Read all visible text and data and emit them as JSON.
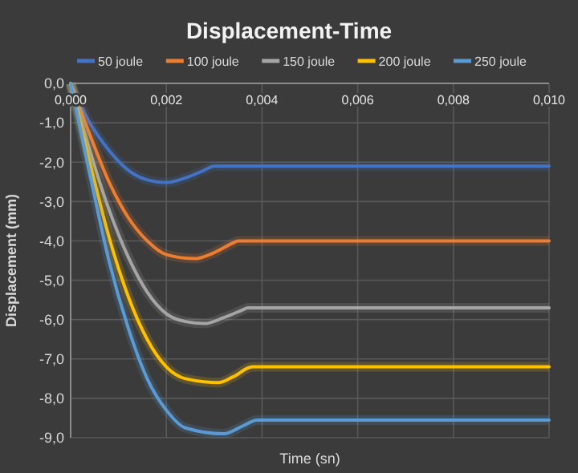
{
  "chart_data": {
    "type": "line",
    "title": "Displacement-Time",
    "xlabel": "Time (sn)",
    "ylabel": "Displacement (mm)",
    "xlim": [
      0,
      0.01
    ],
    "ylim": [
      -9,
      0
    ],
    "xticks": [
      {
        "value": 0,
        "label": "0,000"
      },
      {
        "value": 0.002,
        "label": "0,002"
      },
      {
        "value": 0.004,
        "label": "0,004"
      },
      {
        "value": 0.006,
        "label": "0,006"
      },
      {
        "value": 0.008,
        "label": "0,008"
      },
      {
        "value": 0.01,
        "label": "0,010"
      }
    ],
    "yticks": [
      {
        "value": 0,
        "label": "0,0"
      },
      {
        "value": -1,
        "label": "-1,0"
      },
      {
        "value": -2,
        "label": "-2,0"
      },
      {
        "value": -3,
        "label": "-3,0"
      },
      {
        "value": -4,
        "label": "-4,0"
      },
      {
        "value": -5,
        "label": "-5,0"
      },
      {
        "value": -6,
        "label": "-6,0"
      },
      {
        "value": -7,
        "label": "-7,0"
      },
      {
        "value": -8,
        "label": "-8,0"
      },
      {
        "value": -9,
        "label": "-9,0"
      }
    ],
    "grid": true,
    "legend": "top",
    "marker": "none",
    "line_style": "solid",
    "series": [
      {
        "name": "50 joule",
        "color": "#4472c4",
        "x": [
          0,
          0.0004,
          0.0008,
          0.0012,
          0.0016,
          0.002,
          0.0024,
          0.0028,
          0.003,
          0.01
        ],
        "values": [
          0,
          -1.0,
          -1.7,
          -2.2,
          -2.45,
          -2.52,
          -2.4,
          -2.2,
          -2.1,
          -2.1
        ]
      },
      {
        "name": "100 joule",
        "color": "#ed7d31",
        "x": [
          0,
          0.0004,
          0.0008,
          0.0012,
          0.0016,
          0.002,
          0.0026,
          0.003,
          0.0034,
          0.0035,
          0.01
        ],
        "values": [
          0,
          -1.3,
          -2.5,
          -3.4,
          -4.0,
          -4.35,
          -4.45,
          -4.3,
          -4.05,
          -4.0,
          -4.0
        ]
      },
      {
        "name": "150 joule",
        "color": "#a5a5a5",
        "x": [
          0,
          0.0004,
          0.0008,
          0.0012,
          0.0016,
          0.002,
          0.0024,
          0.0028,
          0.0032,
          0.0036,
          0.0037,
          0.01
        ],
        "values": [
          0,
          -1.7,
          -3.2,
          -4.4,
          -5.3,
          -5.85,
          -6.05,
          -6.1,
          -5.95,
          -5.75,
          -5.7,
          -5.7
        ]
      },
      {
        "name": "200 joule",
        "color": "#ffc000",
        "x": [
          0,
          0.0004,
          0.0008,
          0.0012,
          0.0016,
          0.002,
          0.0024,
          0.0031,
          0.0034,
          0.0038,
          0.01
        ],
        "values": [
          0,
          -2.0,
          -3.9,
          -5.4,
          -6.5,
          -7.2,
          -7.5,
          -7.6,
          -7.45,
          -7.2,
          -7.2
        ]
      },
      {
        "name": "250 joule",
        "color": "#5b9bd5",
        "x": [
          0,
          0.0004,
          0.0008,
          0.0012,
          0.0016,
          0.002,
          0.0024,
          0.0032,
          0.0036,
          0.0039,
          0.01
        ],
        "values": [
          0,
          -2.3,
          -4.5,
          -6.2,
          -7.5,
          -8.3,
          -8.75,
          -8.9,
          -8.7,
          -8.55,
          -8.55
        ]
      }
    ]
  }
}
